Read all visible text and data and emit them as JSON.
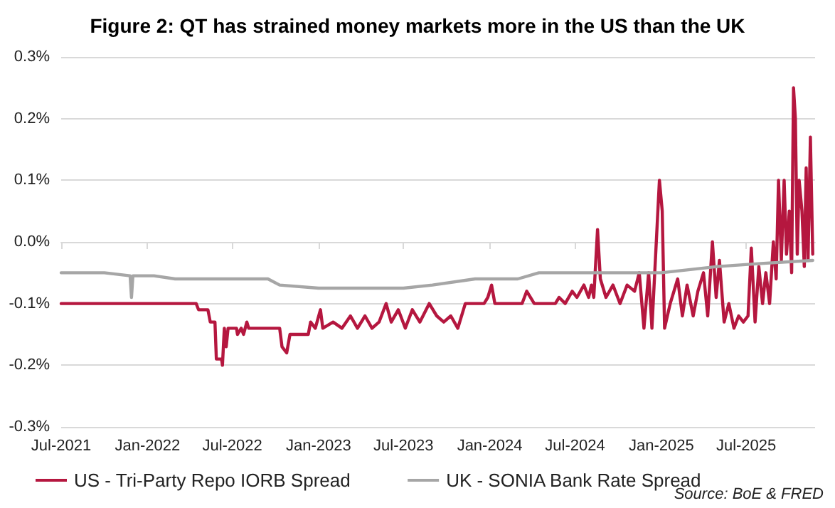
{
  "chart_data": {
    "type": "line",
    "title": "Figure 2: QT has strained money markets more in the US than the UK",
    "annotations": [
      "Source: BoE & FRED"
    ],
    "xlim": [
      "2021-07-01",
      "2025-11-25"
    ],
    "xticks": [
      {
        "value": "2021-07-01",
        "label": "Jul-2021"
      },
      {
        "value": "2022-01-01",
        "label": "Jan-2022"
      },
      {
        "value": "2022-07-01",
        "label": "Jul-2022"
      },
      {
        "value": "2023-01-01",
        "label": "Jan-2023"
      },
      {
        "value": "2023-07-01",
        "label": "Jul-2023"
      },
      {
        "value": "2024-01-01",
        "label": "Jan-2024"
      },
      {
        "value": "2024-07-01",
        "label": "Jul-2024"
      },
      {
        "value": "2025-01-01",
        "label": "Jan-2025"
      },
      {
        "value": "2025-07-01",
        "label": "Jul-2025"
      }
    ],
    "ylim": [
      -0.3,
      0.3
    ],
    "yticks": [
      {
        "value": -0.3,
        "label": "-0.3%"
      },
      {
        "value": -0.2,
        "label": "-0.2%"
      },
      {
        "value": -0.1,
        "label": "-0.1%"
      },
      {
        "value": 0,
        "label": "0.0%"
      },
      {
        "value": 0.1,
        "label": "0.1%"
      },
      {
        "value": 0.2,
        "label": "0.2%"
      },
      {
        "value": 0.3,
        "label": "0.3%"
      }
    ],
    "grid": "y",
    "legend": "bottom",
    "marker": "none",
    "line_style": "solid",
    "series": [
      {
        "name": "US - Tri-Party Repo IORB Spread",
        "color": "#b5173f",
        "x": [
          "2021-07-01",
          "2022-04-15",
          "2022-04-20",
          "2022-05-10",
          "2022-05-15",
          "2022-05-25",
          "2022-05-28",
          "2022-06-08",
          "2022-06-10",
          "2022-06-14",
          "2022-06-18",
          "2022-06-22",
          "2022-07-10",
          "2022-07-12",
          "2022-07-20",
          "2022-07-25",
          "2022-08-01",
          "2022-08-05",
          "2022-10-10",
          "2022-10-15",
          "2022-10-25",
          "2022-11-01",
          "2022-12-10",
          "2022-12-15",
          "2022-12-25",
          "2023-01-05",
          "2023-01-10",
          "2023-02-01",
          "2023-02-20",
          "2023-03-10",
          "2023-03-25",
          "2023-04-10",
          "2023-04-25",
          "2023-05-10",
          "2023-05-25",
          "2023-06-05",
          "2023-06-20",
          "2023-07-05",
          "2023-07-20",
          "2023-08-05",
          "2023-08-25",
          "2023-09-10",
          "2023-09-25",
          "2023-10-10",
          "2023-10-25",
          "2023-11-10",
          "2023-12-20",
          "2023-12-28",
          "2024-01-05",
          "2024-01-12",
          "2024-03-10",
          "2024-03-20",
          "2024-04-05",
          "2024-05-20",
          "2024-05-28",
          "2024-06-10",
          "2024-06-25",
          "2024-07-05",
          "2024-07-20",
          "2024-07-30",
          "2024-08-05",
          "2024-08-10",
          "2024-08-18",
          "2024-08-24",
          "2024-09-05",
          "2024-09-20",
          "2024-10-05",
          "2024-10-20",
          "2024-11-05",
          "2024-11-15",
          "2024-11-25",
          "2024-12-05",
          "2024-12-12",
          "2024-12-20",
          "2024-12-28",
          "2025-01-03",
          "2025-01-08",
          "2025-01-20",
          "2025-02-05",
          "2025-02-15",
          "2025-02-25",
          "2025-03-10",
          "2025-03-20",
          "2025-04-01",
          "2025-04-10",
          "2025-04-20",
          "2025-04-28",
          "2025-05-05",
          "2025-05-15",
          "2025-05-25",
          "2025-06-05",
          "2025-06-15",
          "2025-06-25",
          "2025-07-05",
          "2025-07-12",
          "2025-07-20",
          "2025-07-28",
          "2025-08-05",
          "2025-08-12",
          "2025-08-20",
          "2025-08-28",
          "2025-09-03",
          "2025-09-08",
          "2025-09-14",
          "2025-09-20",
          "2025-09-25",
          "2025-10-01",
          "2025-10-06",
          "2025-10-10",
          "2025-10-14",
          "2025-10-18",
          "2025-10-22",
          "2025-10-28",
          "2025-11-02",
          "2025-11-06",
          "2025-11-10",
          "2025-11-15",
          "2025-11-20"
        ],
        "values": [
          -0.1,
          -0.1,
          -0.11,
          -0.11,
          -0.13,
          -0.13,
          -0.19,
          -0.19,
          -0.2,
          -0.14,
          -0.17,
          -0.14,
          -0.14,
          -0.15,
          -0.14,
          -0.15,
          -0.13,
          -0.14,
          -0.14,
          -0.17,
          -0.18,
          -0.15,
          -0.15,
          -0.13,
          -0.14,
          -0.11,
          -0.14,
          -0.13,
          -0.14,
          -0.12,
          -0.14,
          -0.12,
          -0.14,
          -0.13,
          -0.1,
          -0.13,
          -0.11,
          -0.14,
          -0.11,
          -0.13,
          -0.1,
          -0.12,
          -0.13,
          -0.12,
          -0.14,
          -0.1,
          -0.1,
          -0.09,
          -0.07,
          -0.1,
          -0.1,
          -0.08,
          -0.1,
          -0.1,
          -0.09,
          -0.1,
          -0.08,
          -0.09,
          -0.07,
          -0.09,
          -0.07,
          -0.09,
          0.02,
          -0.06,
          -0.09,
          -0.07,
          -0.1,
          -0.07,
          -0.08,
          -0.05,
          -0.14,
          -0.05,
          -0.14,
          -0.02,
          0.1,
          0.05,
          -0.14,
          -0.1,
          -0.06,
          -0.12,
          -0.07,
          -0.12,
          -0.08,
          -0.05,
          -0.12,
          0.0,
          -0.09,
          -0.03,
          -0.13,
          -0.1,
          -0.14,
          -0.12,
          -0.13,
          -0.12,
          -0.01,
          -0.13,
          -0.04,
          -0.1,
          -0.05,
          -0.1,
          0.0,
          -0.06,
          0.1,
          -0.03,
          0.1,
          -0.02,
          0.05,
          -0.05,
          0.25,
          0.2,
          -0.02,
          0.1,
          0.05,
          -0.04,
          0.12,
          -0.03,
          0.17,
          -0.02
        ]
      },
      {
        "name": "UK - SONIA Bank Rate Spread",
        "color": "#a6a6a6",
        "x": [
          "2021-07-01",
          "2021-10-01",
          "2021-11-25",
          "2021-11-28",
          "2021-12-01",
          "2022-01-15",
          "2022-03-01",
          "2022-07-01",
          "2022-09-15",
          "2022-10-10",
          "2023-01-01",
          "2023-07-01",
          "2023-09-01",
          "2023-12-01",
          "2024-03-01",
          "2024-04-15",
          "2024-07-01",
          "2025-01-01",
          "2025-05-01",
          "2025-08-01",
          "2025-11-20"
        ],
        "values": [
          -0.05,
          -0.05,
          -0.055,
          -0.09,
          -0.055,
          -0.055,
          -0.06,
          -0.06,
          -0.06,
          -0.07,
          -0.075,
          -0.075,
          -0.07,
          -0.06,
          -0.06,
          -0.05,
          -0.05,
          -0.05,
          -0.04,
          -0.035,
          -0.03
        ]
      }
    ]
  }
}
